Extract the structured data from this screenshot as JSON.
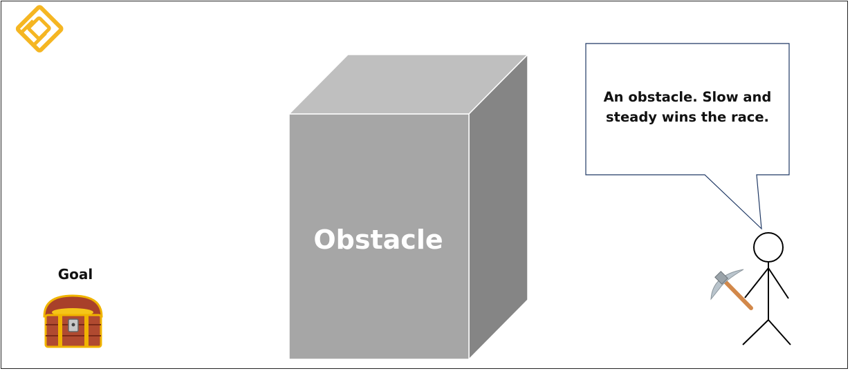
{
  "logo": {
    "icon": "knot-logo-icon",
    "color": "#f5b622"
  },
  "goal": {
    "label": "Goal",
    "icon": "treasure-chest-icon"
  },
  "obstacle": {
    "label": "Obstacle",
    "colors": {
      "front": "#a6a6a6",
      "top": "#bfbfbf",
      "side": "#858585",
      "label": "#ffffff"
    }
  },
  "speech_bubble": {
    "text": "An obstacle. Slow and steady wins the race.",
    "border_color": "#1f3864"
  },
  "character": {
    "icon": "stick-figure-icon",
    "tool": "pickaxe-icon"
  }
}
